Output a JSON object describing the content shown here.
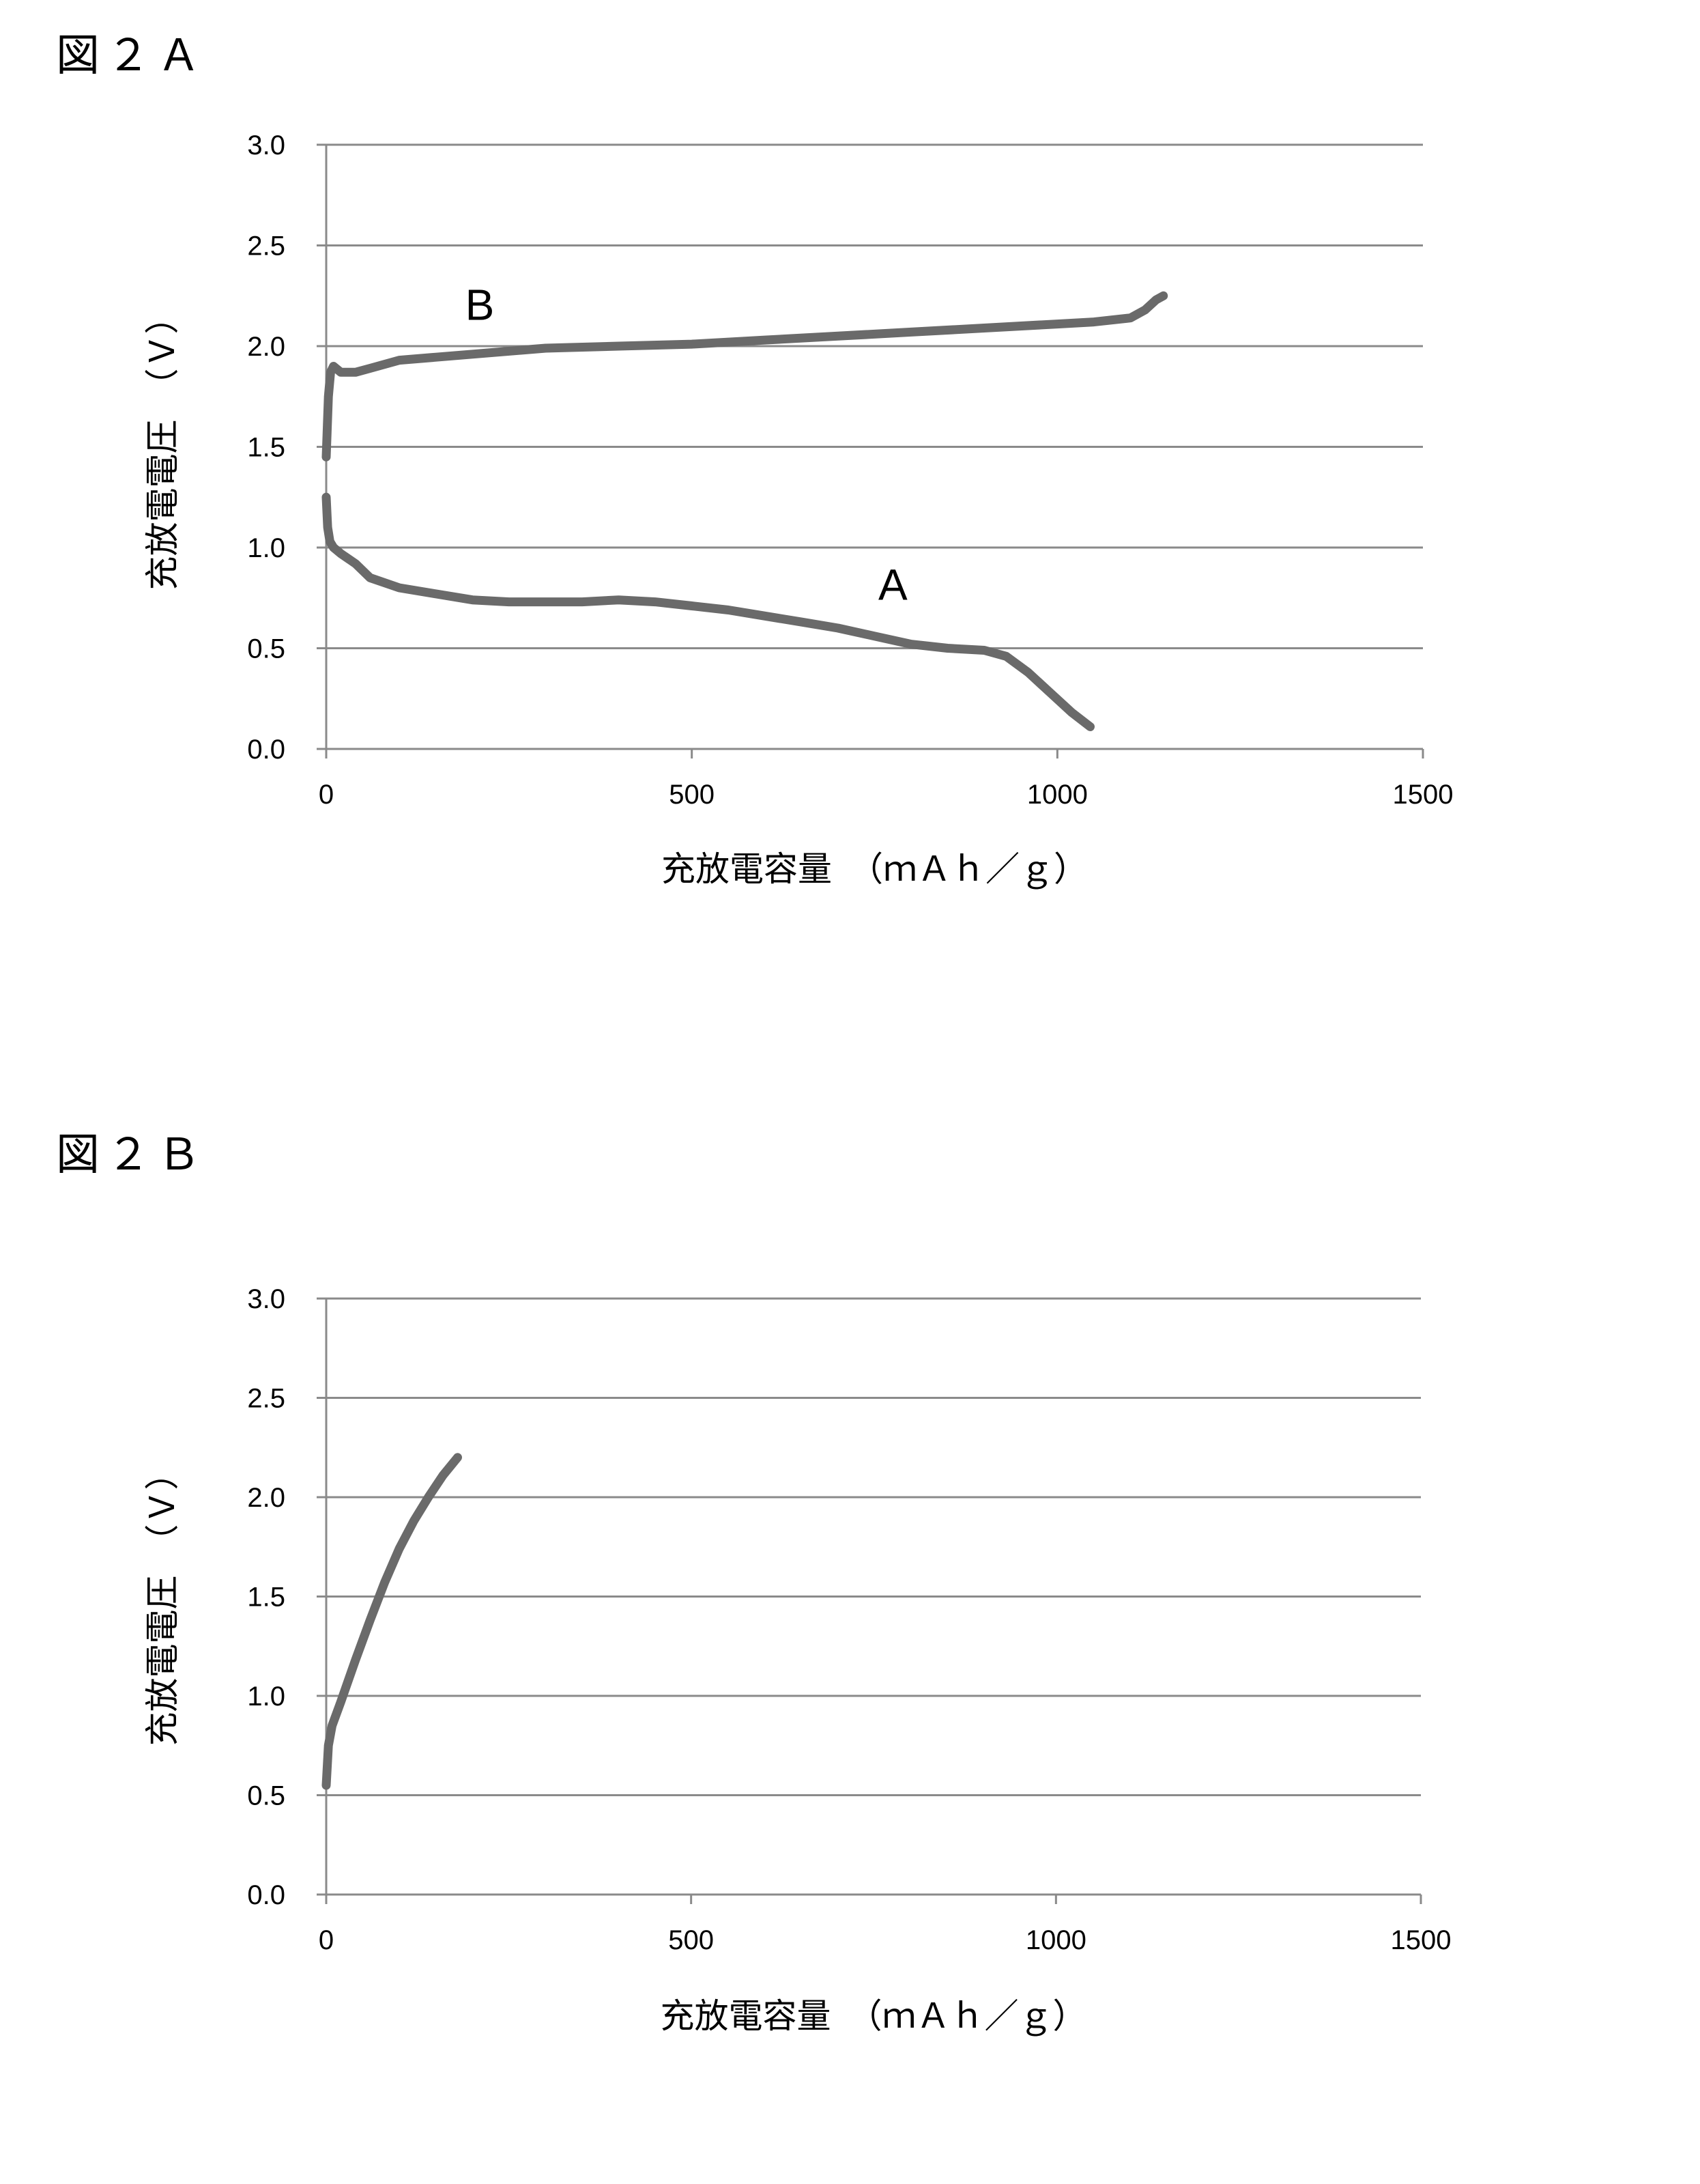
{
  "figures": [
    {
      "label": "図２Ａ"
    },
    {
      "label": "図２Ｂ"
    }
  ],
  "chart_data": [
    {
      "type": "line",
      "xlabel": "充放電容量　（ｍＡｈ／ｇ）",
      "ylabel": "充放電電圧　（Ｖ）",
      "xlim": [
        0,
        1500
      ],
      "ylim": [
        0,
        3.0
      ],
      "xticks": [
        "0",
        "500",
        "1000",
        "1500"
      ],
      "yticks": [
        "0.0",
        "0.5",
        "1.0",
        "1.5",
        "2.0",
        "2.5",
        "3.0"
      ],
      "grid": true,
      "series": [
        {
          "name": "A",
          "x": [
            0,
            2,
            5,
            10,
            20,
            40,
            60,
            100,
            150,
            200,
            250,
            300,
            350,
            400,
            450,
            500,
            550,
            600,
            650,
            700,
            750,
            800,
            850,
            900,
            930,
            960,
            990,
            1020,
            1045
          ],
          "y": [
            1.25,
            1.1,
            1.03,
            1.0,
            0.97,
            0.92,
            0.85,
            0.8,
            0.77,
            0.74,
            0.73,
            0.73,
            0.73,
            0.74,
            0.73,
            0.71,
            0.69,
            0.66,
            0.63,
            0.6,
            0.56,
            0.52,
            0.5,
            0.49,
            0.46,
            0.38,
            0.28,
            0.18,
            0.11
          ]
        },
        {
          "name": "B",
          "x": [
            0,
            3,
            6,
            10,
            20,
            40,
            60,
            100,
            200,
            300,
            400,
            500,
            600,
            700,
            800,
            900,
            1000,
            1050,
            1100,
            1120,
            1135,
            1145
          ],
          "y": [
            1.45,
            1.75,
            1.87,
            1.9,
            1.87,
            1.87,
            1.89,
            1.93,
            1.96,
            1.99,
            2.0,
            2.01,
            2.03,
            2.05,
            2.07,
            2.09,
            2.11,
            2.12,
            2.14,
            2.18,
            2.23,
            2.25
          ]
        }
      ]
    },
    {
      "type": "line",
      "xlabel": "充放電容量　（ｍＡｈ／ｇ）",
      "ylabel": "充放電電圧　（Ｖ）",
      "xlim": [
        0,
        1500
      ],
      "ylim": [
        0,
        3.0
      ],
      "xticks": [
        "0",
        "500",
        "1000",
        "1500"
      ],
      "yticks": [
        "0.0",
        "0.5",
        "1.0",
        "1.5",
        "2.0",
        "2.5",
        "3.0"
      ],
      "grid": true,
      "series": [
        {
          "x": [
            0,
            3,
            8,
            20,
            40,
            60,
            80,
            100,
            120,
            140,
            160,
            180
          ],
          "y": [
            0.55,
            0.75,
            0.85,
            0.97,
            1.18,
            1.38,
            1.57,
            1.74,
            1.88,
            2.0,
            2.11,
            2.2
          ]
        }
      ]
    }
  ]
}
